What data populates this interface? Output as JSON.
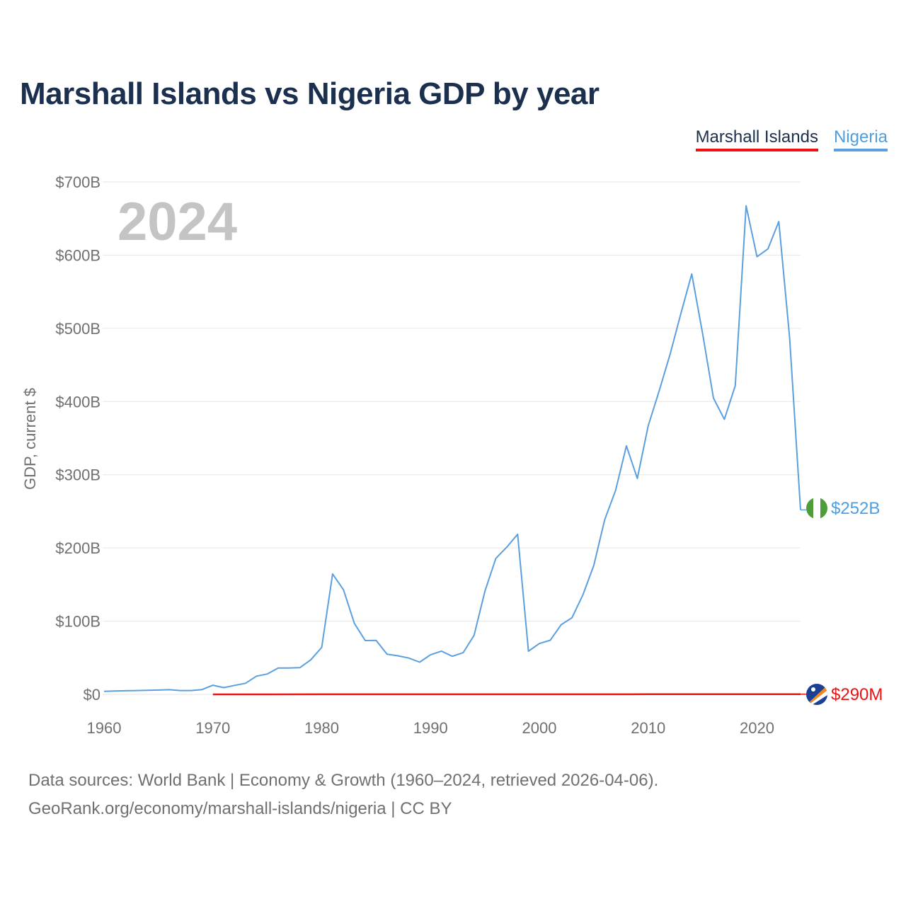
{
  "title": "Marshall Islands vs Nigeria GDP by year",
  "legend": [
    {
      "label": "Marshall Islands",
      "color": "#ee1111"
    },
    {
      "label": "Nigeria",
      "color": "#5b9fdf"
    }
  ],
  "year_display": "2024",
  "end_labels": {
    "nigeria": "$252B",
    "marshall_islands": "$290M"
  },
  "source_lines": [
    "Data sources: World Bank | Economy & Growth (1960–2024, retrieved 2026-04-06).",
    "GeoRank.org/economy/marshall-islands/nigeria | CC BY"
  ],
  "chart_data": {
    "type": "line",
    "title": "Marshall Islands vs Nigeria GDP by year",
    "xlabel": "",
    "ylabel": "GDP, current $",
    "xlim": [
      1960,
      2024
    ],
    "ylim": [
      0,
      700
    ],
    "y_units": "billions USD",
    "grid": true,
    "legend_position": "top-right",
    "x_ticks": [
      1960,
      1970,
      1980,
      1990,
      2000,
      2010,
      2020
    ],
    "x_tick_labels": [
      "1960",
      "1970",
      "1980",
      "1990",
      "2000",
      "2010",
      "2020"
    ],
    "y_ticks": [
      0,
      100,
      200,
      300,
      400,
      500,
      600,
      700
    ],
    "y_tick_labels": [
      "$0",
      "$100B",
      "$200B",
      "$300B",
      "$400B",
      "$500B",
      "$600B",
      "$700B"
    ],
    "series": [
      {
        "name": "Nigeria",
        "color": "#5b9fdf",
        "x": [
          1960,
          1961,
          1962,
          1963,
          1964,
          1965,
          1966,
          1967,
          1968,
          1969,
          1970,
          1971,
          1972,
          1973,
          1974,
          1975,
          1976,
          1977,
          1978,
          1979,
          1980,
          1981,
          1982,
          1983,
          1984,
          1985,
          1986,
          1987,
          1988,
          1989,
          1990,
          1991,
          1992,
          1993,
          1994,
          1995,
          1996,
          1997,
          1998,
          1999,
          2000,
          2001,
          2002,
          2003,
          2004,
          2005,
          2006,
          2007,
          2008,
          2009,
          2010,
          2011,
          2012,
          2013,
          2014,
          2015,
          2016,
          2017,
          2018,
          2019,
          2020,
          2021,
          2022,
          2023,
          2024
        ],
        "values": [
          4.2,
          4.5,
          4.9,
          5.2,
          5.5,
          5.9,
          6.4,
          5.2,
          5.2,
          6.6,
          12.5,
          9.2,
          12.3,
          15.2,
          24.8,
          27.8,
          36.0,
          36.0,
          36.5,
          47.2,
          64.2,
          164.5,
          142.8,
          97.1,
          73.5,
          73.7,
          54.8,
          52.7,
          49.6,
          44.0,
          54.0,
          59.1,
          52.0,
          56.9,
          80.7,
          141.0,
          185.7,
          201.0,
          218.7,
          59.0,
          69.4,
          73.9,
          95.1,
          104.7,
          135.8,
          176.1,
          238.5,
          278.3,
          339.5,
          295.0,
          366.9,
          414.0,
          463.9,
          520.1,
          574.2,
          493.0,
          404.6,
          375.7,
          421.7,
          667.3,
          597.8,
          608.4,
          645.9,
          486.8,
          252.0
        ]
      },
      {
        "name": "Marshall Islands",
        "color": "#ee1111",
        "x": [
          1970,
          1975,
          1980,
          1985,
          1990,
          1995,
          2000,
          2005,
          2010,
          2015,
          2020,
          2024
        ],
        "values": [
          0.03,
          0.04,
          0.05,
          0.07,
          0.08,
          0.12,
          0.11,
          0.14,
          0.18,
          0.18,
          0.24,
          0.29
        ]
      }
    ],
    "end_values": {
      "Nigeria": "$252B",
      "Marshall Islands": "$290M"
    }
  }
}
